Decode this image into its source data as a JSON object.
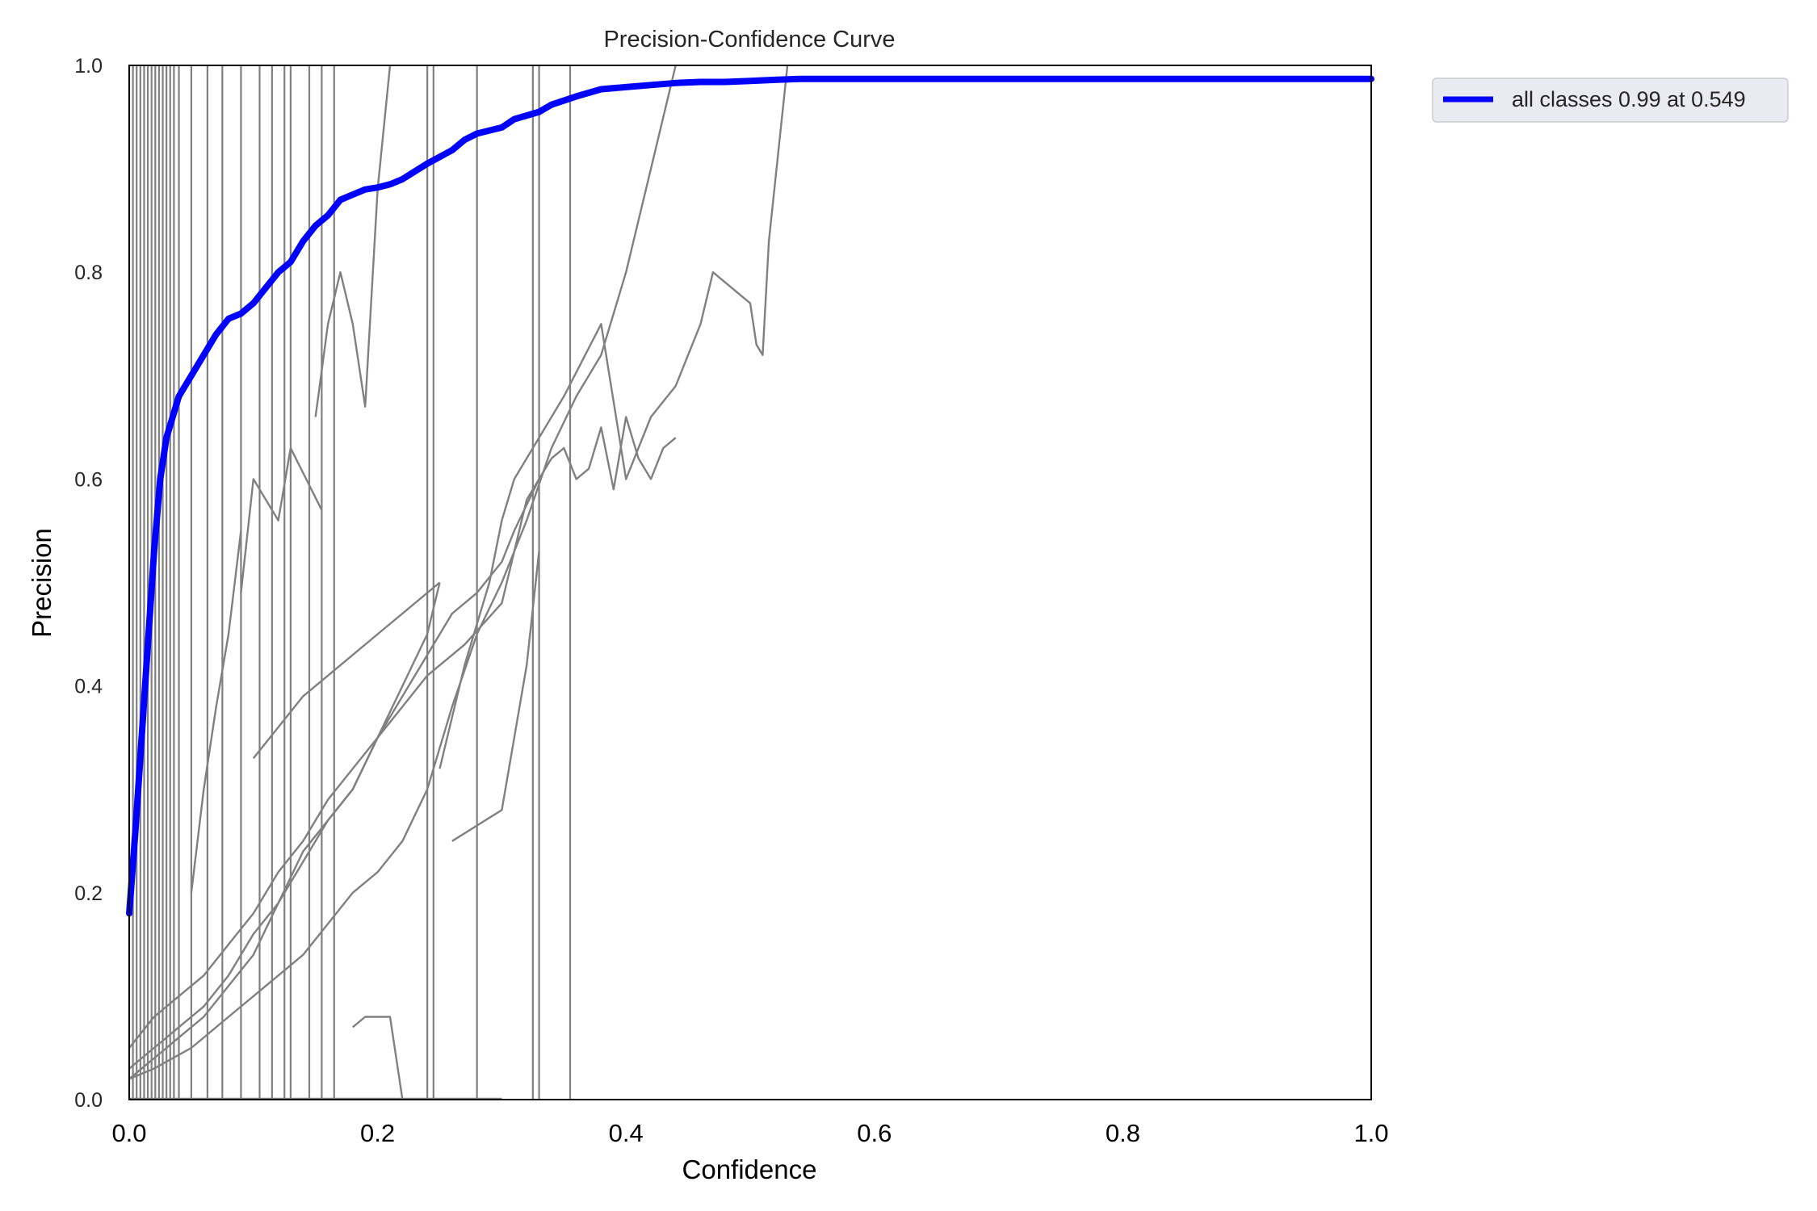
{
  "chart_data": {
    "type": "line",
    "title": "Precision-Confidence Curve",
    "xlabel": "Confidence",
    "ylabel": "Precision",
    "xlim": [
      0,
      1
    ],
    "ylim": [
      0,
      1
    ],
    "x_ticks": [
      "0.0",
      "0.2",
      "0.4",
      "0.6",
      "0.8",
      "1.0"
    ],
    "y_ticks": [
      "0.0",
      "0.2",
      "0.4",
      "0.6",
      "0.8",
      "1.0"
    ],
    "grid": false,
    "legend": "outside-upper-right",
    "colors": {
      "main": "#0000ff",
      "classes": "#808080"
    },
    "series": [
      {
        "name": "all classes 0.99 at 0.549",
        "x": [
          0.0,
          0.005,
          0.01,
          0.015,
          0.02,
          0.025,
          0.03,
          0.035,
          0.04,
          0.045,
          0.05,
          0.06,
          0.07,
          0.08,
          0.09,
          0.1,
          0.11,
          0.12,
          0.13,
          0.14,
          0.15,
          0.16,
          0.17,
          0.18,
          0.19,
          0.2,
          0.21,
          0.22,
          0.24,
          0.26,
          0.27,
          0.28,
          0.3,
          0.31,
          0.33,
          0.34,
          0.36,
          0.38,
          0.4,
          0.42,
          0.44,
          0.46,
          0.48,
          0.5,
          0.52,
          0.54,
          0.549,
          0.6,
          0.7,
          0.8,
          0.9,
          1.0
        ],
        "y": [
          0.18,
          0.26,
          0.35,
          0.44,
          0.53,
          0.6,
          0.64,
          0.66,
          0.68,
          0.69,
          0.7,
          0.72,
          0.74,
          0.755,
          0.76,
          0.77,
          0.785,
          0.8,
          0.81,
          0.83,
          0.845,
          0.855,
          0.87,
          0.875,
          0.88,
          0.882,
          0.885,
          0.89,
          0.905,
          0.918,
          0.928,
          0.934,
          0.94,
          0.948,
          0.955,
          0.962,
          0.97,
          0.977,
          0.979,
          0.981,
          0.983,
          0.984,
          0.984,
          0.985,
          0.986,
          0.987,
          0.987,
          0.987,
          0.987,
          0.987,
          0.987,
          0.987
        ]
      }
    ],
    "class_curves": [
      {
        "x": [
          0.0,
          0.01,
          0.02,
          0.03,
          0.04,
          0.06,
          0.08,
          0.1,
          0.12,
          0.14,
          0.16,
          0.18,
          0.2,
          0.22,
          0.24,
          0.25
        ],
        "y": [
          0.02,
          0.03,
          0.04,
          0.05,
          0.06,
          0.08,
          0.11,
          0.14,
          0.19,
          0.23,
          0.27,
          0.3,
          0.35,
          0.4,
          0.45,
          0.5
        ]
      },
      {
        "x": [
          0.0,
          0.02,
          0.04,
          0.06,
          0.08,
          0.1,
          0.12,
          0.14,
          0.16,
          0.18,
          0.2,
          0.22,
          0.24,
          0.26,
          0.28,
          0.3,
          0.31,
          0.33
        ],
        "y": [
          0.03,
          0.05,
          0.07,
          0.09,
          0.12,
          0.16,
          0.19,
          0.24,
          0.27,
          0.3,
          0.35,
          0.39,
          0.43,
          0.47,
          0.49,
          0.52,
          0.55,
          0.6
        ]
      },
      {
        "x": [
          0.0,
          0.02,
          0.04,
          0.06,
          0.08,
          0.1,
          0.12,
          0.14,
          0.16,
          0.18,
          0.2,
          0.22,
          0.24,
          0.27,
          0.3,
          0.32,
          0.34,
          0.35,
          0.36,
          0.37,
          0.38,
          0.39,
          0.4,
          0.41,
          0.42,
          0.43,
          0.44
        ],
        "y": [
          0.05,
          0.08,
          0.1,
          0.12,
          0.15,
          0.18,
          0.22,
          0.25,
          0.29,
          0.32,
          0.35,
          0.38,
          0.41,
          0.44,
          0.48,
          0.58,
          0.62,
          0.63,
          0.6,
          0.61,
          0.65,
          0.59,
          0.66,
          0.62,
          0.6,
          0.63,
          0.64
        ]
      },
      {
        "x": [
          0.0,
          0.02,
          0.05,
          0.08,
          0.1,
          0.12,
          0.14,
          0.16,
          0.18,
          0.2,
          0.22,
          0.24,
          0.26,
          0.28,
          0.3,
          0.32,
          0.34,
          0.36,
          0.38,
          0.4,
          0.42,
          0.44
        ],
        "y": [
          0.02,
          0.03,
          0.05,
          0.08,
          0.1,
          0.12,
          0.14,
          0.17,
          0.2,
          0.22,
          0.25,
          0.3,
          0.38,
          0.45,
          0.5,
          0.56,
          0.63,
          0.68,
          0.72,
          0.8,
          0.9,
          1.0
        ]
      },
      {
        "x": [
          0.1,
          0.12,
          0.14,
          0.16,
          0.18,
          0.2,
          0.22,
          0.24,
          0.25
        ],
        "y": [
          0.33,
          0.36,
          0.39,
          0.41,
          0.43,
          0.45,
          0.47,
          0.49,
          0.5
        ]
      },
      {
        "x": [
          0.25,
          0.27,
          0.29,
          0.3,
          0.31,
          0.33,
          0.35,
          0.38,
          0.4,
          0.42,
          0.44,
          0.46,
          0.47,
          0.5,
          0.505,
          0.51,
          0.515,
          0.53
        ],
        "y": [
          0.32,
          0.42,
          0.5,
          0.56,
          0.6,
          0.64,
          0.68,
          0.75,
          0.6,
          0.66,
          0.69,
          0.75,
          0.8,
          0.77,
          0.73,
          0.72,
          0.83,
          1.0
        ]
      },
      {
        "x": [
          0.26,
          0.3,
          0.31,
          0.32,
          0.33
        ],
        "y": [
          0.25,
          0.28,
          0.35,
          0.42,
          0.53
        ]
      },
      {
        "x": [
          0.09,
          0.1,
          0.12,
          0.13,
          0.155
        ],
        "y": [
          0.49,
          0.6,
          0.56,
          0.63,
          0.57
        ]
      },
      {
        "x": [
          0.15,
          0.16,
          0.17,
          0.18,
          0.19,
          0.2,
          0.21
        ],
        "y": [
          0.66,
          0.75,
          0.8,
          0.75,
          0.67,
          0.88,
          1.0
        ]
      },
      {
        "x": [
          0.18,
          0.19,
          0.21,
          0.22
        ],
        "y": [
          0.07,
          0.08,
          0.08,
          0.0
        ]
      },
      {
        "x": [
          0.05,
          0.06,
          0.07,
          0.08,
          0.09
        ],
        "y": [
          0.2,
          0.3,
          0.38,
          0.45,
          0.55
        ]
      }
    ],
    "vertical_drops": [
      0.0,
      0.003,
      0.006,
      0.009,
      0.012,
      0.015,
      0.018,
      0.021,
      0.024,
      0.027,
      0.03,
      0.033,
      0.036,
      0.04,
      0.05,
      0.063,
      0.075,
      0.09,
      0.105,
      0.115,
      0.125,
      0.13,
      0.145,
      0.155,
      0.165,
      0.24,
      0.245,
      0.28,
      0.325,
      0.33,
      0.355
    ]
  }
}
